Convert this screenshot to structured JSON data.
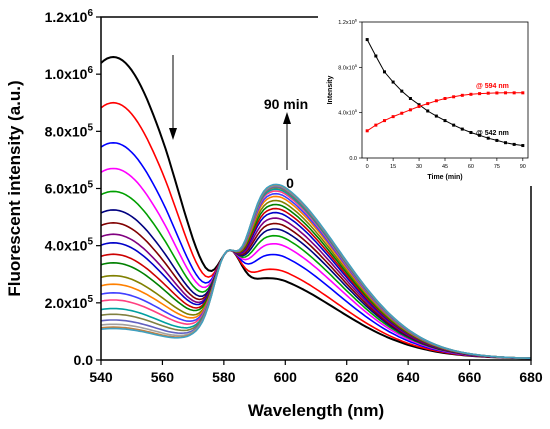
{
  "chart_data": [
    {
      "type": "line",
      "xlabel": "Wavelength (nm)",
      "ylabel": "Fluorescent intensity (a.u.)",
      "xlim": [
        540,
        680
      ],
      "ylim": [
        0,
        1200000
      ],
      "x_ticks": [
        {
          "value": 540,
          "label": "540"
        },
        {
          "value": 560,
          "label": "560"
        },
        {
          "value": 580,
          "label": "580"
        },
        {
          "value": 600,
          "label": "600"
        },
        {
          "value": 620,
          "label": "620"
        },
        {
          "value": 640,
          "label": "640"
        },
        {
          "value": 660,
          "label": "660"
        },
        {
          "value": 680,
          "label": "680"
        }
      ],
      "y_ticks": [
        {
          "value": 0,
          "base": "0.0",
          "exp": ""
        },
        {
          "value": 200000,
          "base": "2.0x10",
          "exp": "5"
        },
        {
          "value": 400000,
          "base": "4.0x10",
          "exp": "5"
        },
        {
          "value": 600000,
          "base": "6.0x10",
          "exp": "5"
        },
        {
          "value": 800000,
          "base": "8.0x10",
          "exp": "5"
        },
        {
          "value": 1000000,
          "base": "1.0x10",
          "exp": "6"
        },
        {
          "value": 1200000,
          "base": "1.2x10",
          "exp": "6"
        }
      ],
      "annotations": {
        "top": "90 min",
        "bottom": "0"
      },
      "isosbestic_point": {
        "x": 582,
        "y": 385000
      },
      "series_colors": [
        "#000000",
        "#ff0000",
        "#0000ff",
        "#ff00ff",
        "#00a000",
        "#000080",
        "#800000",
        "#800080",
        "#0000c8",
        "#cc0000",
        "#008000",
        "#808000",
        "#ff8000",
        "#4040ff",
        "#ff4080",
        "#00a0a0",
        "#808040",
        "#6060c0",
        "#a0a0a0",
        "#c08040",
        "#40a0c0"
      ],
      "series": [
        {
          "minutes": 0,
          "peak542": 1060000,
          "peak594": 220000
        },
        {
          "minutes": 5,
          "peak542": 900000,
          "peak594": 255000
        },
        {
          "minutes": 10,
          "peak542": 760000,
          "peak594": 310000
        },
        {
          "minutes": 15,
          "peak542": 670000,
          "peak594": 350000
        },
        {
          "minutes": 20,
          "peak542": 590000,
          "peak594": 380000
        },
        {
          "minutes": 25,
          "peak542": 525000,
          "peak594": 405000
        },
        {
          "minutes": 30,
          "peak542": 480000,
          "peak594": 425000
        },
        {
          "minutes": 35,
          "peak542": 440000,
          "peak594": 445000
        },
        {
          "minutes": 40,
          "peak542": 410000,
          "peak594": 465000
        },
        {
          "minutes": 45,
          "peak542": 370000,
          "peak594": 480000
        },
        {
          "minutes": 50,
          "peak542": 340000,
          "peak594": 495000
        },
        {
          "minutes": 55,
          "peak542": 295000,
          "peak594": 510000
        },
        {
          "minutes": 60,
          "peak542": 265000,
          "peak594": 525000
        },
        {
          "minutes": 65,
          "peak542": 235000,
          "peak594": 535000
        },
        {
          "minutes": 70,
          "peak542": 210000,
          "peak594": 545000
        },
        {
          "minutes": 75,
          "peak542": 180000,
          "peak594": 552000
        },
        {
          "minutes": 80,
          "peak542": 160000,
          "peak594": 558000
        },
        {
          "minutes": 85,
          "peak542": 140000,
          "peak594": 562000
        },
        {
          "minutes": 90,
          "peak542": 125000,
          "peak594": 566000
        },
        {
          "minutes": 90,
          "peak542": 115000,
          "peak594": 568000
        },
        {
          "minutes": 90,
          "peak542": 110000,
          "peak594": 570000
        }
      ]
    },
    {
      "type": "line",
      "xlabel": "Time (min)",
      "ylabel": "Intensity",
      "xlim": [
        -3,
        93
      ],
      "ylim": [
        0,
        1200000
      ],
      "x_ticks": [
        0,
        15,
        30,
        45,
        60,
        75,
        90
      ],
      "y_ticks": [
        {
          "value": 0,
          "base": "0.0",
          "exp": ""
        },
        {
          "value": 400000,
          "base": "4.0x10",
          "exp": "5"
        },
        {
          "value": 800000,
          "base": "8.0x10",
          "exp": "5"
        },
        {
          "value": 1200000,
          "base": "1.2x10",
          "exp": "6"
        }
      ],
      "x": [
        0,
        5,
        10,
        15,
        20,
        25,
        30,
        35,
        40,
        45,
        50,
        55,
        60,
        65,
        70,
        75,
        80,
        85,
        90
      ],
      "series": [
        {
          "name": "@ 542 nm",
          "color": "#000000",
          "values": [
            1045000,
            900000,
            760000,
            670000,
            590000,
            525000,
            470000,
            415000,
            370000,
            330000,
            290000,
            255000,
            225000,
            200000,
            175000,
            155000,
            135000,
            120000,
            110000
          ]
        },
        {
          "name": "@ 594 nm",
          "color": "#ff0000",
          "values": [
            240000,
            290000,
            330000,
            365000,
            395000,
            425000,
            455000,
            480000,
            505000,
            525000,
            540000,
            553000,
            562000,
            568000,
            572000,
            574000,
            575000,
            575000,
            575000
          ]
        }
      ]
    }
  ]
}
